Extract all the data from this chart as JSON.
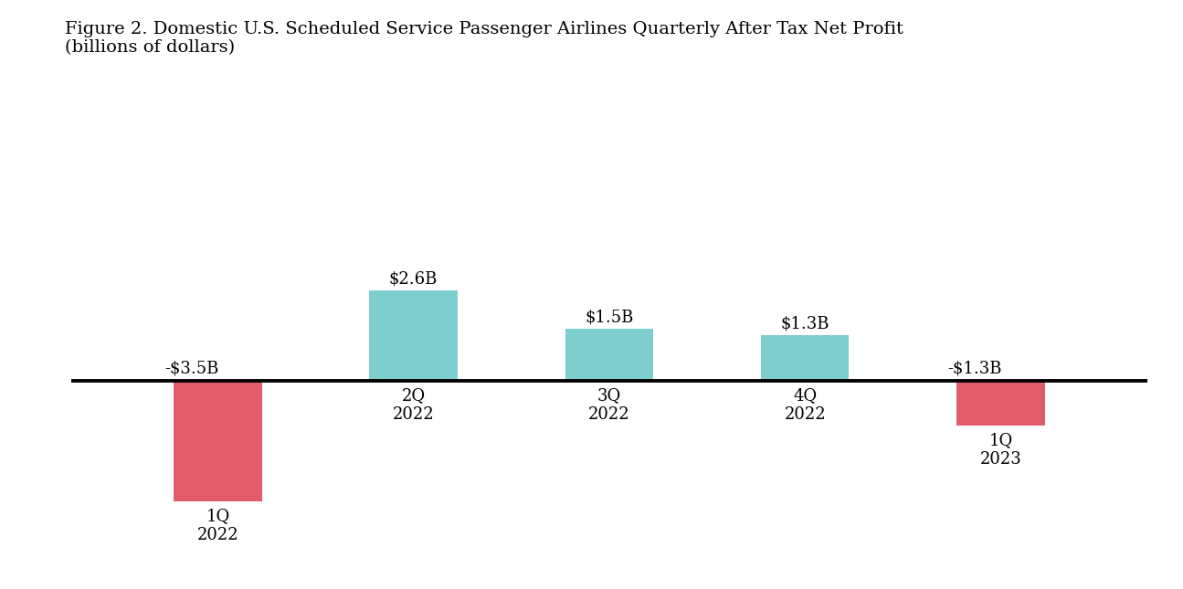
{
  "title_line1": "Figure 2. Domestic U.S. Scheduled Service Passenger Airlines Quarterly After Tax Net Profit",
  "title_line2": "(billions of dollars)",
  "categories": [
    "1Q\n2022",
    "2Q\n2022",
    "3Q\n2022",
    "4Q\n2022",
    "1Q\n2023"
  ],
  "values": [
    -3.5,
    2.6,
    1.5,
    1.3,
    -1.3
  ],
  "labels": [
    "-$3.5B",
    "$2.6B",
    "$1.5B",
    "$1.3B",
    "-$1.3B"
  ],
  "positive_color": "#7ecece",
  "negative_color": "#e05c6a",
  "background_color": "#ffffff",
  "bar_width": 0.45,
  "ylim": [
    -5.2,
    4.2
  ],
  "title_fontsize": 14,
  "label_fontsize": 13,
  "tick_fontsize": 13
}
